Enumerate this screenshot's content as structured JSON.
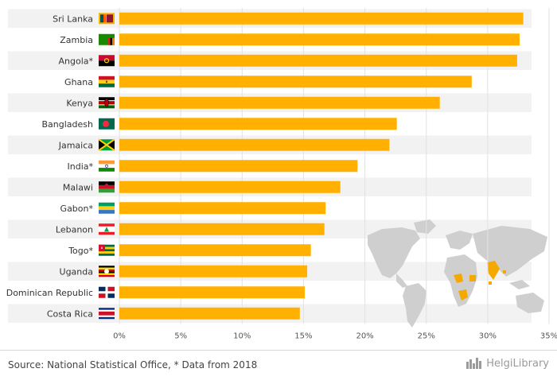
{
  "chart_data": {
    "type": "bar",
    "orientation": "horizontal",
    "categories": [
      "Sri Lanka",
      "Zambia",
      "Angola*",
      "Ghana",
      "Kenya",
      "Bangladesh",
      "Jamaica",
      "India*",
      "Malawi",
      "Gabon*",
      "Lebanon",
      "Togo*",
      "Uganda",
      "Dominican Republic",
      "Costa Rica"
    ],
    "values": [
      32.9,
      32.6,
      32.4,
      28.7,
      26.1,
      22.6,
      22.0,
      19.4,
      18.0,
      16.8,
      16.7,
      15.6,
      15.3,
      15.1,
      14.7
    ],
    "xlim": [
      0,
      35
    ],
    "xticks": [
      "0%",
      "5%",
      "10%",
      "15%",
      "20%",
      "25%",
      "30%",
      "35%"
    ],
    "grid": true,
    "bar_color": "#ffb000",
    "row_stripe_color": "#f2f2f2"
  },
  "footer": {
    "source": "Source: National Statistical Office, * Data from 2018",
    "brand": "HelgiLibrary"
  },
  "flags": [
    {
      "name": "sri-lanka-flag-icon",
      "colors": [
        "#f7b200",
        "#00534e",
        "#ff5b00",
        "#8d153a"
      ]
    },
    {
      "name": "zambia-flag-icon",
      "colors": [
        "#198a00",
        "#de2010",
        "#000000",
        "#ef7d00"
      ]
    },
    {
      "name": "angola-flag-icon",
      "colors": [
        "#cc092f",
        "#000000",
        "#ffcb00"
      ]
    },
    {
      "name": "ghana-flag-icon",
      "colors": [
        "#ce1126",
        "#fcd116",
        "#006b3f",
        "#000000"
      ]
    },
    {
      "name": "kenya-flag-icon",
      "colors": [
        "#000000",
        "#bb0000",
        "#006600",
        "#ffffff"
      ]
    },
    {
      "name": "bangladesh-flag-icon",
      "colors": [
        "#006a4e",
        "#f42a41"
      ]
    },
    {
      "name": "jamaica-flag-icon",
      "colors": [
        "#009b3a",
        "#fed100",
        "#000000"
      ]
    },
    {
      "name": "india-flag-icon",
      "colors": [
        "#ff9933",
        "#ffffff",
        "#138808",
        "#000080"
      ]
    },
    {
      "name": "malawi-flag-icon",
      "colors": [
        "#000000",
        "#ce1126",
        "#339e35"
      ]
    },
    {
      "name": "gabon-flag-icon",
      "colors": [
        "#009e60",
        "#fcd116",
        "#3a75c4"
      ]
    },
    {
      "name": "lebanon-flag-icon",
      "colors": [
        "#ed1c24",
        "#ffffff",
        "#00a651"
      ]
    },
    {
      "name": "togo-flag-icon",
      "colors": [
        "#006a4e",
        "#ffce00",
        "#d21034",
        "#ffffff"
      ]
    },
    {
      "name": "uganda-flag-icon",
      "colors": [
        "#000000",
        "#fcdc04",
        "#d90000"
      ]
    },
    {
      "name": "dominican-republic-flag-icon",
      "colors": [
        "#002d62",
        "#ce1126",
        "#ffffff"
      ]
    },
    {
      "name": "costa-rica-flag-icon",
      "colors": [
        "#002b7f",
        "#ffffff",
        "#ce1126"
      ]
    }
  ],
  "map": {
    "land_color": "#cfcfcf",
    "highlight_color": "#f5a800"
  }
}
